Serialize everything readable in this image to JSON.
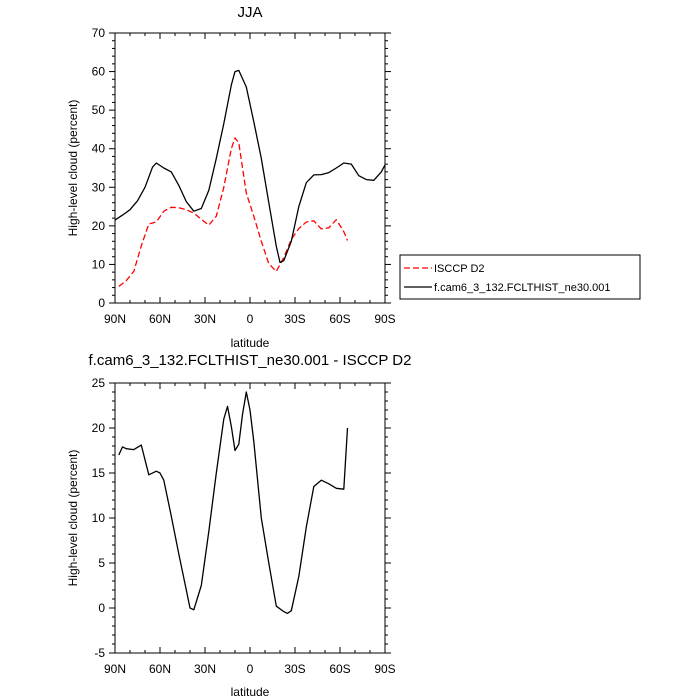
{
  "chart_data": [
    {
      "type": "line",
      "title": "JJA",
      "xlabel": "latitude",
      "ylabel": "High-level cloud (percent)",
      "xlim": [
        90,
        -90
      ],
      "ylim": [
        0,
        70
      ],
      "xticks": [
        90,
        60,
        30,
        0,
        -30,
        -60,
        -90
      ],
      "xticklabels": [
        "90N",
        "60N",
        "30N",
        "0",
        "30S",
        "60S",
        "90S"
      ],
      "yticks": [
        0,
        10,
        20,
        30,
        40,
        50,
        60,
        70
      ],
      "yticklabels": [
        "0",
        "10",
        "20",
        "30",
        "40",
        "50",
        "60",
        "70"
      ],
      "legend": {
        "position": "right",
        "entries": [
          "ISCCP D2",
          "f.cam6_3_132.FCLTHIST_ne30.001"
        ]
      },
      "series": [
        {
          "name": "ISCCP D2",
          "color": "#ff0000",
          "dash": "dashed",
          "x": [
            87.5,
            82.5,
            77.5,
            72.5,
            67.5,
            62.5,
            57.5,
            52.5,
            47.5,
            42.5,
            37.5,
            32.5,
            27.5,
            22.5,
            17.5,
            12.5,
            10.0,
            7.5,
            2.5,
            -2.5,
            -7.5,
            -12.5,
            -17.5,
            -22.5,
            -27.5,
            -32.5,
            -37.5,
            -42.5,
            -47.5,
            -52.5,
            -57.5,
            -62.5,
            -65.0
          ],
          "y": [
            4.3,
            5.8,
            8.2,
            14.8,
            20.5,
            21.0,
            23.8,
            24.8,
            24.7,
            24.2,
            23.3,
            21.7,
            20.2,
            22.5,
            30.0,
            40.0,
            42.8,
            41.5,
            28.5,
            22.5,
            16.0,
            10.2,
            8.2,
            11.8,
            16.5,
            19.3,
            21.0,
            21.3,
            19.2,
            19.5,
            21.6,
            18.5,
            16.2
          ]
        },
        {
          "name": "f.cam6_3_132.FCLTHIST_ne30.001",
          "color": "#000000",
          "dash": "solid",
          "x": [
            90.0,
            85.0,
            80.0,
            75.0,
            70.0,
            65.0,
            62.5,
            57.5,
            52.5,
            47.5,
            42.5,
            37.5,
            32.5,
            27.5,
            22.5,
            17.5,
            12.5,
            10.0,
            7.5,
            2.5,
            -2.5,
            -7.5,
            -12.5,
            -17.5,
            -20.0,
            -22.5,
            -27.5,
            -32.5,
            -37.5,
            -42.5,
            -47.5,
            -52.5,
            -57.5,
            -62.5,
            -67.5,
            -72.5,
            -77.5,
            -82.5,
            -87.5,
            -90.0
          ],
          "y": [
            21.5,
            22.8,
            24.2,
            26.5,
            30.0,
            35.2,
            36.3,
            35.0,
            34.0,
            30.5,
            26.3,
            23.8,
            24.5,
            29.2,
            37.5,
            46.5,
            56.5,
            60.0,
            60.3,
            56.0,
            47.0,
            37.5,
            26.0,
            14.7,
            10.5,
            11.0,
            16.0,
            25.0,
            31.2,
            33.2,
            33.3,
            33.8,
            35.0,
            36.3,
            36.0,
            33.0,
            32.0,
            31.8,
            34.0,
            35.8
          ]
        }
      ]
    },
    {
      "type": "line",
      "title": "f.cam6_3_132.FCLTHIST_ne30.001 - ISCCP D2",
      "xlabel": "latitude",
      "ylabel": "High-level cloud (percent)",
      "xlim": [
        90,
        -90
      ],
      "ylim": [
        -5,
        25
      ],
      "xticks": [
        90,
        60,
        30,
        0,
        -30,
        -60,
        -90
      ],
      "xticklabels": [
        "90N",
        "60N",
        "30N",
        "0",
        "30S",
        "60S",
        "90S"
      ],
      "yticks": [
        -5,
        0,
        5,
        10,
        15,
        20,
        25
      ],
      "yticklabels": [
        "-5",
        "0",
        "5",
        "10",
        "15",
        "20",
        "25"
      ],
      "series": [
        {
          "color": "#000000",
          "dash": "solid",
          "x": [
            87.5,
            85.0,
            82.5,
            77.5,
            72.5,
            67.5,
            62.5,
            60.0,
            57.5,
            52.5,
            47.5,
            42.5,
            40.0,
            37.5,
            32.5,
            27.5,
            22.5,
            17.5,
            15.0,
            12.5,
            10.0,
            7.5,
            5.0,
            2.5,
            0.0,
            -2.5,
            -7.5,
            -12.5,
            -17.5,
            -22.5,
            -25.0,
            -27.5,
            -32.5,
            -37.5,
            -42.5,
            -47.5,
            -52.5,
            -57.5,
            -62.5,
            -65.0
          ],
          "y": [
            17.0,
            17.9,
            17.7,
            17.6,
            18.1,
            14.8,
            15.2,
            15.0,
            14.2,
            10.2,
            6.0,
            2.0,
            0.0,
            -0.2,
            2.5,
            8.5,
            15.0,
            21.0,
            22.4,
            20.2,
            17.5,
            18.2,
            21.5,
            24.0,
            22.0,
            18.5,
            10.0,
            5.0,
            0.2,
            -0.4,
            -0.6,
            -0.3,
            3.5,
            9.0,
            13.5,
            14.2,
            13.8,
            13.3,
            13.2,
            20.0
          ]
        }
      ]
    }
  ]
}
